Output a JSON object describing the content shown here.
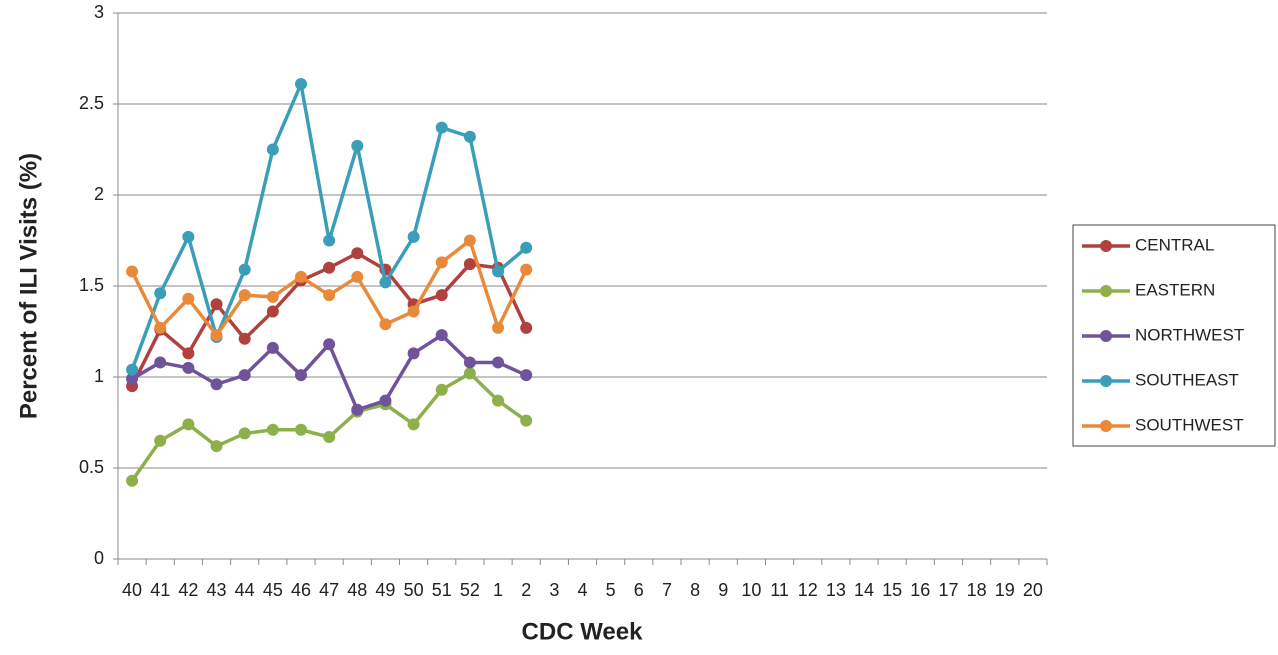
{
  "chart_data": {
    "type": "line",
    "x_label": "CDC Week",
    "y_label": "Percent of ILI Visits (%)",
    "categories": [
      "40",
      "41",
      "42",
      "43",
      "44",
      "45",
      "46",
      "47",
      "48",
      "49",
      "50",
      "51",
      "52",
      "1",
      "2",
      "3",
      "4",
      "5",
      "6",
      "7",
      "8",
      "9",
      "10",
      "11",
      "12",
      "13",
      "14",
      "15",
      "16",
      "17",
      "18",
      "19",
      "20"
    ],
    "ylim": [
      0,
      3
    ],
    "yticks": [
      0,
      0.5,
      1,
      1.5,
      2,
      2.5,
      3
    ],
    "grid": true,
    "legend": "right",
    "series": [
      {
        "name": "CENTRAL",
        "color": "#b0413e",
        "values": [
          0.95,
          1.26,
          1.13,
          1.4,
          1.21,
          1.36,
          1.53,
          1.6,
          1.68,
          1.59,
          1.4,
          1.45,
          1.62,
          1.6,
          1.27,
          null,
          null,
          null,
          null,
          null,
          null,
          null,
          null,
          null,
          null,
          null,
          null,
          null,
          null,
          null,
          null,
          null,
          null
        ]
      },
      {
        "name": "EASTERN",
        "color": "#8db04a",
        "values": [
          0.43,
          0.65,
          0.74,
          0.62,
          0.69,
          0.71,
          0.71,
          0.67,
          0.81,
          0.85,
          0.74,
          0.93,
          1.02,
          0.87,
          0.76,
          null,
          null,
          null,
          null,
          null,
          null,
          null,
          null,
          null,
          null,
          null,
          null,
          null,
          null,
          null,
          null,
          null,
          null
        ]
      },
      {
        "name": "NORTHWEST",
        "color": "#6f539b",
        "values": [
          0.99,
          1.08,
          1.05,
          0.96,
          1.01,
          1.16,
          1.01,
          1.18,
          0.82,
          0.87,
          1.13,
          1.23,
          1.08,
          1.08,
          1.01,
          null,
          null,
          null,
          null,
          null,
          null,
          null,
          null,
          null,
          null,
          null,
          null,
          null,
          null,
          null,
          null,
          null,
          null
        ]
      },
      {
        "name": "SOUTHEAST",
        "color": "#3b9eb8",
        "values": [
          1.04,
          1.46,
          1.77,
          1.22,
          1.59,
          2.25,
          2.61,
          1.75,
          2.27,
          1.52,
          1.77,
          2.37,
          2.32,
          1.58,
          1.71,
          null,
          null,
          null,
          null,
          null,
          null,
          null,
          null,
          null,
          null,
          null,
          null,
          null,
          null,
          null,
          null,
          null,
          null
        ]
      },
      {
        "name": "SOUTHWEST",
        "color": "#e98a3a",
        "values": [
          1.58,
          1.27,
          1.43,
          1.23,
          1.45,
          1.44,
          1.55,
          1.45,
          1.55,
          1.29,
          1.36,
          1.63,
          1.75,
          1.27,
          1.59,
          null,
          null,
          null,
          null,
          null,
          null,
          null,
          null,
          null,
          null,
          null,
          null,
          null,
          null,
          null,
          null,
          null,
          null
        ]
      }
    ]
  }
}
